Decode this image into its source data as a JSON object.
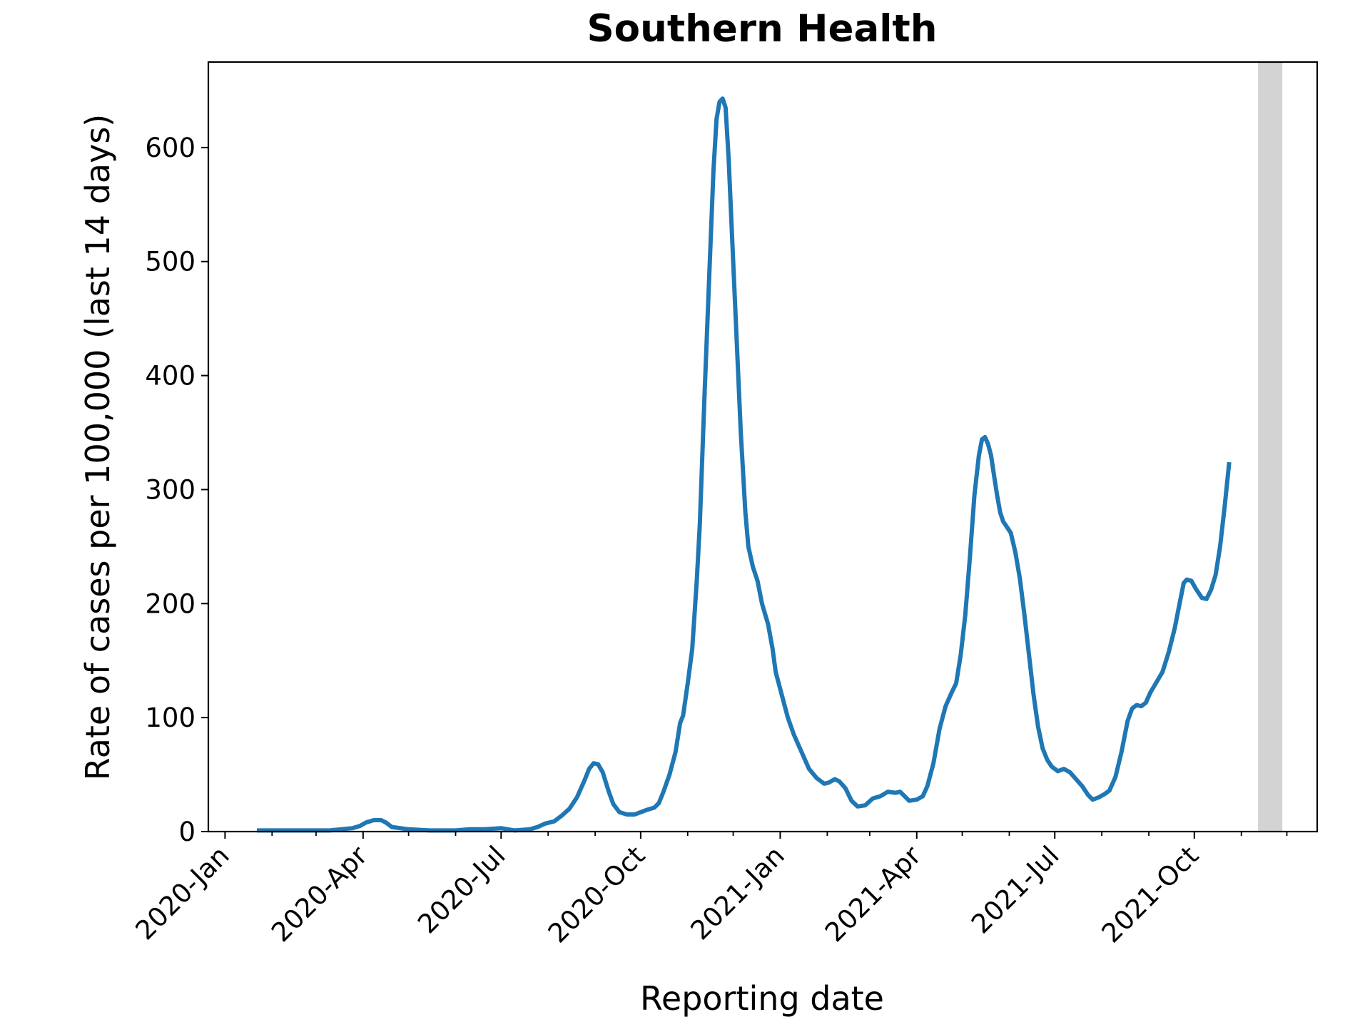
{
  "chart_data": {
    "type": "line",
    "title": "Southern Health",
    "xlabel": "Reporting date",
    "ylabel": "Rate of cases per 100,000 (last 14 days)",
    "ylim": [
      0,
      675
    ],
    "xlim": [
      "2019-12-21",
      "2021-12-21"
    ],
    "grid": false,
    "legend": "none",
    "y_ticks": [
      0,
      100,
      200,
      300,
      400,
      500,
      600
    ],
    "x_ticks": [
      {
        "date": "2020-01-01",
        "label": "2020-Jan"
      },
      {
        "date": "2020-04-01",
        "label": "2020-Apr"
      },
      {
        "date": "2020-07-01",
        "label": "2020-Jul"
      },
      {
        "date": "2020-10-01",
        "label": "2020-Oct"
      },
      {
        "date": "2021-01-01",
        "label": "2021-Jan"
      },
      {
        "date": "2021-04-01",
        "label": "2021-Apr"
      },
      {
        "date": "2021-07-01",
        "label": "2021-Jul"
      },
      {
        "date": "2021-10-01",
        "label": "2021-Oct"
      }
    ],
    "x_minor_ticks": [
      "2020-02-01",
      "2020-03-01",
      "2020-05-01",
      "2020-06-01",
      "2020-08-01",
      "2020-09-01",
      "2020-11-01",
      "2020-12-01",
      "2021-02-01",
      "2021-03-01",
      "2021-05-01",
      "2021-06-01",
      "2021-08-01",
      "2021-09-01",
      "2021-11-01",
      "2021-12-01"
    ],
    "shaded_region": {
      "start": "2021-11-12",
      "end": "2021-11-28",
      "color": "#d3d3d3"
    },
    "series": [
      {
        "color": "#1f77b4",
        "points": [
          [
            "2020-01-22",
            1
          ],
          [
            "2020-02-15",
            1
          ],
          [
            "2020-03-10",
            1
          ],
          [
            "2020-03-25",
            3
          ],
          [
            "2020-03-30",
            5
          ],
          [
            "2020-04-03",
            8
          ],
          [
            "2020-04-08",
            10
          ],
          [
            "2020-04-13",
            10
          ],
          [
            "2020-04-16",
            8
          ],
          [
            "2020-04-20",
            4
          ],
          [
            "2020-05-01",
            2
          ],
          [
            "2020-05-15",
            1
          ],
          [
            "2020-06-01",
            1
          ],
          [
            "2020-06-10",
            2
          ],
          [
            "2020-06-20",
            2
          ],
          [
            "2020-07-01",
            3
          ],
          [
            "2020-07-10",
            1
          ],
          [
            "2020-07-20",
            2
          ],
          [
            "2020-07-25",
            4
          ],
          [
            "2020-07-30",
            7
          ],
          [
            "2020-08-05",
            9
          ],
          [
            "2020-08-10",
            14
          ],
          [
            "2020-08-15",
            20
          ],
          [
            "2020-08-20",
            30
          ],
          [
            "2020-08-25",
            45
          ],
          [
            "2020-08-28",
            55
          ],
          [
            "2020-08-31",
            60
          ],
          [
            "2020-09-03",
            59
          ],
          [
            "2020-09-06",
            52
          ],
          [
            "2020-09-10",
            35
          ],
          [
            "2020-09-13",
            24
          ],
          [
            "2020-09-17",
            17
          ],
          [
            "2020-09-22",
            15
          ],
          [
            "2020-09-27",
            15
          ],
          [
            "2020-10-01",
            17
          ],
          [
            "2020-10-05",
            19
          ],
          [
            "2020-10-10",
            21
          ],
          [
            "2020-10-13",
            25
          ],
          [
            "2020-10-16",
            35
          ],
          [
            "2020-10-20",
            50
          ],
          [
            "2020-10-24",
            70
          ],
          [
            "2020-10-27",
            95
          ],
          [
            "2020-10-29",
            102
          ],
          [
            "2020-11-01",
            130
          ],
          [
            "2020-11-04",
            160
          ],
          [
            "2020-11-07",
            220
          ],
          [
            "2020-11-09",
            270
          ],
          [
            "2020-11-12",
            380
          ],
          [
            "2020-11-15",
            480
          ],
          [
            "2020-11-18",
            580
          ],
          [
            "2020-11-20",
            625
          ],
          [
            "2020-11-22",
            640
          ],
          [
            "2020-11-24",
            643
          ],
          [
            "2020-11-26",
            635
          ],
          [
            "2020-11-28",
            590
          ],
          [
            "2020-11-30",
            530
          ],
          [
            "2020-12-03",
            440
          ],
          [
            "2020-12-06",
            350
          ],
          [
            "2020-12-09",
            280
          ],
          [
            "2020-12-11",
            250
          ],
          [
            "2020-12-14",
            232
          ],
          [
            "2020-12-17",
            220
          ],
          [
            "2020-12-20",
            200
          ],
          [
            "2020-12-24",
            182
          ],
          [
            "2020-12-27",
            160
          ],
          [
            "2020-12-29",
            140
          ],
          [
            "2021-01-02",
            120
          ],
          [
            "2021-01-06",
            100
          ],
          [
            "2021-01-10",
            85
          ],
          [
            "2021-01-15",
            70
          ],
          [
            "2021-01-20",
            55
          ],
          [
            "2021-01-25",
            47
          ],
          [
            "2021-01-30",
            42
          ],
          [
            "2021-02-02",
            43
          ],
          [
            "2021-02-06",
            46
          ],
          [
            "2021-02-09",
            44
          ],
          [
            "2021-02-13",
            38
          ],
          [
            "2021-02-17",
            27
          ],
          [
            "2021-02-21",
            22
          ],
          [
            "2021-02-26",
            23
          ],
          [
            "2021-03-03",
            29
          ],
          [
            "2021-03-08",
            31
          ],
          [
            "2021-03-13",
            35
          ],
          [
            "2021-03-18",
            34
          ],
          [
            "2021-03-21",
            35
          ],
          [
            "2021-03-24",
            31
          ],
          [
            "2021-03-27",
            27
          ],
          [
            "2021-04-01",
            28
          ],
          [
            "2021-04-05",
            31
          ],
          [
            "2021-04-08",
            40
          ],
          [
            "2021-04-12",
            60
          ],
          [
            "2021-04-16",
            90
          ],
          [
            "2021-04-20",
            110
          ],
          [
            "2021-04-24",
            122
          ],
          [
            "2021-04-27",
            130
          ],
          [
            "2021-04-30",
            155
          ],
          [
            "2021-05-03",
            190
          ],
          [
            "2021-05-06",
            240
          ],
          [
            "2021-05-09",
            295
          ],
          [
            "2021-05-12",
            330
          ],
          [
            "2021-05-14",
            344
          ],
          [
            "2021-05-16",
            346
          ],
          [
            "2021-05-18",
            340
          ],
          [
            "2021-05-20",
            330
          ],
          [
            "2021-05-22",
            312
          ],
          [
            "2021-05-24",
            295
          ],
          [
            "2021-05-26",
            280
          ],
          [
            "2021-05-28",
            272
          ],
          [
            "2021-05-30",
            268
          ],
          [
            "2021-06-02",
            262
          ],
          [
            "2021-06-05",
            245
          ],
          [
            "2021-06-08",
            222
          ],
          [
            "2021-06-11",
            190
          ],
          [
            "2021-06-14",
            155
          ],
          [
            "2021-06-17",
            120
          ],
          [
            "2021-06-20",
            92
          ],
          [
            "2021-06-23",
            73
          ],
          [
            "2021-06-26",
            63
          ],
          [
            "2021-06-29",
            57
          ],
          [
            "2021-07-03",
            53
          ],
          [
            "2021-07-07",
            55
          ],
          [
            "2021-07-11",
            52
          ],
          [
            "2021-07-15",
            46
          ],
          [
            "2021-07-19",
            40
          ],
          [
            "2021-07-23",
            32
          ],
          [
            "2021-07-26",
            28
          ],
          [
            "2021-07-30",
            30
          ],
          [
            "2021-08-03",
            33
          ],
          [
            "2021-08-06",
            36
          ],
          [
            "2021-08-10",
            48
          ],
          [
            "2021-08-14",
            70
          ],
          [
            "2021-08-18",
            97
          ],
          [
            "2021-08-21",
            108
          ],
          [
            "2021-08-24",
            111
          ],
          [
            "2021-08-27",
            110
          ],
          [
            "2021-08-30",
            113
          ],
          [
            "2021-09-02",
            122
          ],
          [
            "2021-09-06",
            131
          ],
          [
            "2021-09-10",
            140
          ],
          [
            "2021-09-14",
            157
          ],
          [
            "2021-09-18",
            178
          ],
          [
            "2021-09-21",
            198
          ],
          [
            "2021-09-24",
            218
          ],
          [
            "2021-09-26",
            221
          ],
          [
            "2021-09-29",
            220
          ],
          [
            "2021-10-02",
            213
          ],
          [
            "2021-10-06",
            205
          ],
          [
            "2021-10-09",
            204
          ],
          [
            "2021-10-12",
            212
          ],
          [
            "2021-10-15",
            225
          ],
          [
            "2021-10-18",
            250
          ],
          [
            "2021-10-21",
            285
          ],
          [
            "2021-10-24",
            324
          ]
        ]
      }
    ]
  }
}
